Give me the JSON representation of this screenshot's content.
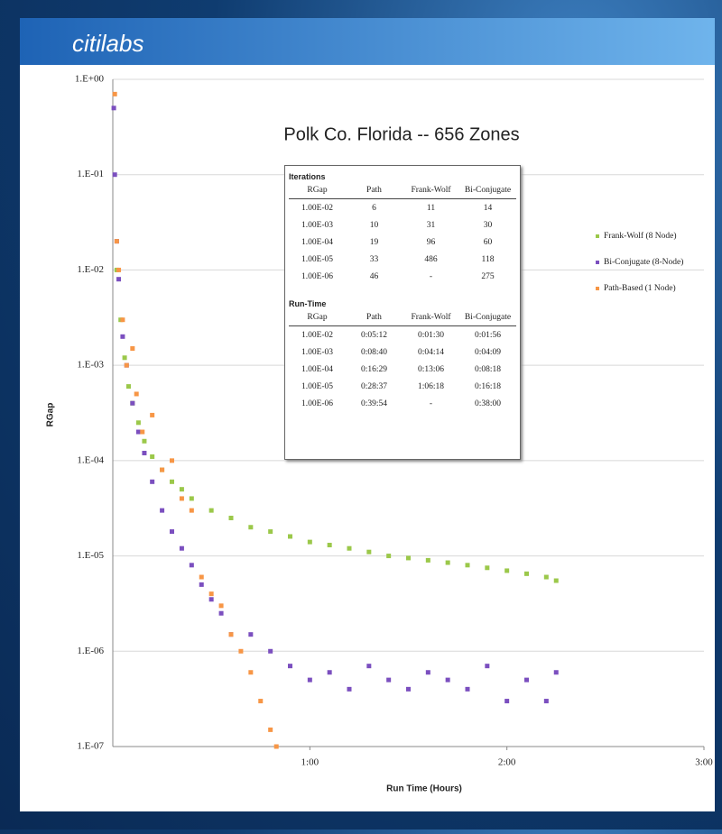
{
  "header": {
    "logo": "citilabs"
  },
  "chart_data": {
    "type": "scatter",
    "title": "Polk Co. Florida -- 656 Zones",
    "x_label": "Run Time (Hours)",
    "y_label": "RGap",
    "xlim": [
      0,
      3
    ],
    "xticks": [
      {
        "value": 1,
        "label": "1:00"
      },
      {
        "value": 2,
        "label": "2:00"
      },
      {
        "value": 3,
        "label": "3:00"
      }
    ],
    "ylim": [
      1e-07,
      1
    ],
    "ylog": true,
    "grid": true,
    "legend": "right",
    "yticks": [
      {
        "value": 1,
        "label": "1.E+00"
      },
      {
        "value": 0.1,
        "label": "1.E-01"
      },
      {
        "value": 0.01,
        "label": "1.E-02"
      },
      {
        "value": 0.001,
        "label": "1.E-03"
      },
      {
        "value": 0.0001,
        "label": "1.E-04"
      },
      {
        "value": 1e-05,
        "label": "1.E-05"
      },
      {
        "value": 1e-06,
        "label": "1.E-06"
      },
      {
        "value": 1e-07,
        "label": "1.E-07"
      }
    ],
    "series": [
      {
        "name": "Frank-Wolf (8 Node)",
        "color": "#9bc84a",
        "x": [
          0.02,
          0.04,
          0.06,
          0.08,
          0.1,
          0.13,
          0.16,
          0.2,
          0.25,
          0.3,
          0.35,
          0.4,
          0.5,
          0.6,
          0.7,
          0.8,
          0.9,
          1.0,
          1.1,
          1.2,
          1.3,
          1.4,
          1.5,
          1.6,
          1.7,
          1.8,
          1.9,
          2.0,
          2.1,
          2.2,
          2.25
        ],
        "values": [
          0.01,
          0.003,
          0.0012,
          0.0006,
          0.0004,
          0.00025,
          0.00016,
          0.00011,
          8e-05,
          6e-05,
          5e-05,
          4e-05,
          3e-05,
          2.5e-05,
          2e-05,
          1.8e-05,
          1.6e-05,
          1.4e-05,
          1.3e-05,
          1.2e-05,
          1.1e-05,
          1e-05,
          9.5e-06,
          9e-06,
          8.5e-06,
          8e-06,
          7.5e-06,
          7e-06,
          6.5e-06,
          6e-06,
          5.5e-06
        ]
      },
      {
        "name": "Bi-Conjugate (8-Node)",
        "color": "#7b4fbf",
        "x": [
          0.005,
          0.01,
          0.02,
          0.03,
          0.05,
          0.07,
          0.1,
          0.13,
          0.16,
          0.2,
          0.25,
          0.3,
          0.35,
          0.4,
          0.45,
          0.5,
          0.55,
          0.6,
          0.7,
          0.8,
          0.9,
          1.0,
          1.1,
          1.2,
          1.3,
          1.4,
          1.5,
          1.6,
          1.7,
          1.8,
          1.9,
          2.0,
          2.1,
          2.2,
          2.25
        ],
        "values": [
          0.5,
          0.1,
          0.02,
          0.008,
          0.002,
          0.001,
          0.0004,
          0.0002,
          0.00012,
          6e-05,
          3e-05,
          1.8e-05,
          1.2e-05,
          8e-06,
          5e-06,
          3.5e-06,
          2.5e-06,
          1.5e-06,
          1.5e-06,
          1e-06,
          7e-07,
          5e-07,
          6e-07,
          4e-07,
          7e-07,
          5e-07,
          4e-07,
          6e-07,
          5e-07,
          4e-07,
          7e-07,
          3e-07,
          5e-07,
          3e-07,
          6e-07
        ]
      },
      {
        "name": "Path-Based (1 Node)",
        "color": "#f79646",
        "x": [
          0.01,
          0.02,
          0.03,
          0.05,
          0.07,
          0.1,
          0.12,
          0.15,
          0.2,
          0.25,
          0.3,
          0.35,
          0.4,
          0.45,
          0.5,
          0.55,
          0.6,
          0.65,
          0.7,
          0.75,
          0.8,
          0.83
        ],
        "values": [
          0.7,
          0.02,
          0.01,
          0.003,
          0.001,
          0.0015,
          0.0005,
          0.0002,
          0.0003,
          8e-05,
          0.0001,
          4e-05,
          3e-05,
          6e-06,
          4e-06,
          3e-06,
          1.5e-06,
          1e-06,
          6e-07,
          3e-07,
          1.5e-07,
          1e-07
        ]
      }
    ]
  },
  "tables": [
    {
      "title": "Iterations",
      "columns": [
        "RGap",
        "Path",
        "Frank-Wolf",
        "Bi-Conjugate"
      ],
      "rows": [
        [
          "1.00E-02",
          "6",
          "11",
          "14"
        ],
        [
          "1.00E-03",
          "10",
          "31",
          "30"
        ],
        [
          "1.00E-04",
          "19",
          "96",
          "60"
        ],
        [
          "1.00E-05",
          "33",
          "486",
          "118"
        ],
        [
          "1.00E-06",
          "46",
          "-",
          "275"
        ]
      ]
    },
    {
      "title": "Run-Time",
      "columns": [
        "RGap",
        "Path",
        "Frank-Wolf",
        "Bi-Conjugate"
      ],
      "rows": [
        [
          "1.00E-02",
          "0:05:12",
          "0:01:30",
          "0:01:56"
        ],
        [
          "1.00E-03",
          "0:08:40",
          "0:04:14",
          "0:04:09"
        ],
        [
          "1.00E-04",
          "0:16:29",
          "0:13:06",
          "0:08:18"
        ],
        [
          "1.00E-05",
          "0:28:37",
          "1:06:18",
          "0:16:18"
        ],
        [
          "1.00E-06",
          "0:39:54",
          "-",
          "0:38:00"
        ]
      ]
    }
  ]
}
